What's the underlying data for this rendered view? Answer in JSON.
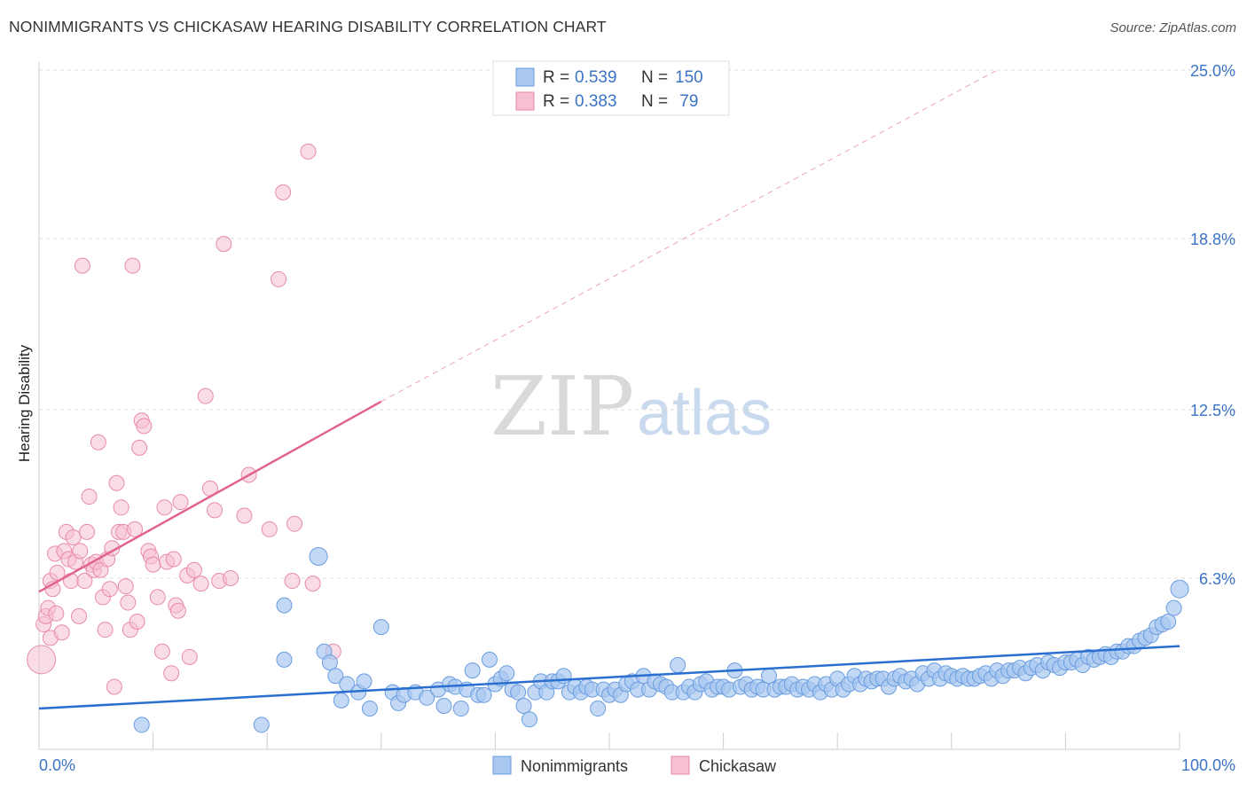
{
  "header": {
    "title": "NONIMMIGRANTS VS CHICKASAW HEARING DISABILITY CORRELATION CHART",
    "source": "Source: ZipAtlas.com"
  },
  "watermark": {
    "zip": "ZIP",
    "atlas": "atlas"
  },
  "colors": {
    "blue_fill": "#a8c8ef",
    "blue_stroke": "#6a9de0",
    "blue_line": "#2a6fd0",
    "pink_fill": "#f6bfd2",
    "pink_stroke": "#e88aab",
    "pink_line": "#e0648f",
    "grid": "#dddddd",
    "axis_label": "#3a73c4"
  },
  "legend": {
    "rows": [
      {
        "r_label": "R = ",
        "r_value": "0.539",
        "n_label": "N = ",
        "n_value": "150"
      },
      {
        "r_label": "R = ",
        "r_value": "0.383",
        "n_label": "N = ",
        "n_value": " 79"
      }
    ]
  },
  "chart_data": {
    "type": "scatter",
    "title": "NONIMMIGRANTS VS CHICKASAW HEARING DISABILITY CORRELATION CHART",
    "xlabel": "",
    "ylabel": "Hearing Disability",
    "xlim": [
      0,
      100
    ],
    "ylim": [
      0,
      25.0
    ],
    "x_tick_labels": [
      "0.0%",
      "100.0%"
    ],
    "y_ticks": [
      6.3,
      12.5,
      18.8,
      25.0
    ],
    "y_tick_labels": [
      "6.3%",
      "12.5%",
      "18.8%",
      "25.0%"
    ],
    "x_minor_ticks": [
      10,
      20,
      30,
      40,
      50,
      60,
      70,
      80,
      90,
      100
    ],
    "legend_position": "top-center",
    "series": [
      {
        "name": "Nonimmigrants",
        "r": 0.539,
        "n": 150,
        "trend": {
          "x0": 0,
          "y0": 1.5,
          "x1": 100,
          "y1": 3.8,
          "dashed_to": null
        },
        "points": [
          [
            9,
            0.9
          ],
          [
            19.5,
            0.9
          ],
          [
            21.5,
            5.3
          ],
          [
            21.5,
            3.3
          ],
          [
            24.5,
            7.1
          ],
          [
            25,
            3.6
          ],
          [
            25.5,
            3.2
          ],
          [
            26,
            2.7
          ],
          [
            26.5,
            1.8
          ],
          [
            27,
            2.4
          ],
          [
            28,
            2.1
          ],
          [
            28.5,
            2.5
          ],
          [
            29,
            1.5
          ],
          [
            30,
            4.5
          ],
          [
            31,
            2.1
          ],
          [
            31.5,
            1.7
          ],
          [
            32,
            2.0
          ],
          [
            33,
            2.1
          ],
          [
            34,
            1.9
          ],
          [
            35,
            2.2
          ],
          [
            35.5,
            1.6
          ],
          [
            36,
            2.4
          ],
          [
            36.5,
            2.3
          ],
          [
            37,
            1.5
          ],
          [
            37.5,
            2.2
          ],
          [
            38,
            2.9
          ],
          [
            38.5,
            2.0
          ],
          [
            39,
            2.0
          ],
          [
            39.5,
            3.3
          ],
          [
            40,
            2.4
          ],
          [
            40.5,
            2.6
          ],
          [
            41,
            2.8
          ],
          [
            41.5,
            2.2
          ],
          [
            42,
            2.1
          ],
          [
            42.5,
            1.6
          ],
          [
            43,
            1.1
          ],
          [
            43.5,
            2.1
          ],
          [
            44,
            2.5
          ],
          [
            44.5,
            2.1
          ],
          [
            45,
            2.5
          ],
          [
            45.5,
            2.5
          ],
          [
            46,
            2.7
          ],
          [
            46.5,
            2.1
          ],
          [
            47,
            2.3
          ],
          [
            47.5,
            2.1
          ],
          [
            48,
            2.3
          ],
          [
            48.5,
            2.2
          ],
          [
            49,
            1.5
          ],
          [
            49.5,
            2.2
          ],
          [
            50,
            2.0
          ],
          [
            50.5,
            2.2
          ],
          [
            51,
            2.0
          ],
          [
            51.5,
            2.4
          ],
          [
            52,
            2.5
          ],
          [
            52.5,
            2.2
          ],
          [
            53,
            2.7
          ],
          [
            53.5,
            2.2
          ],
          [
            54,
            2.5
          ],
          [
            54.5,
            2.4
          ],
          [
            55,
            2.3
          ],
          [
            55.5,
            2.1
          ],
          [
            56,
            3.1
          ],
          [
            56.5,
            2.1
          ],
          [
            57,
            2.3
          ],
          [
            57.5,
            2.1
          ],
          [
            58,
            2.4
          ],
          [
            58.5,
            2.5
          ],
          [
            59,
            2.2
          ],
          [
            59.5,
            2.3
          ],
          [
            60,
            2.3
          ],
          [
            60.5,
            2.2
          ],
          [
            61,
            2.9
          ],
          [
            61.5,
            2.3
          ],
          [
            62,
            2.4
          ],
          [
            62.5,
            2.2
          ],
          [
            63,
            2.3
          ],
          [
            63.5,
            2.2
          ],
          [
            64,
            2.7
          ],
          [
            64.5,
            2.2
          ],
          [
            65,
            2.3
          ],
          [
            65.5,
            2.3
          ],
          [
            66,
            2.4
          ],
          [
            66.5,
            2.2
          ],
          [
            67,
            2.3
          ],
          [
            67.5,
            2.2
          ],
          [
            68,
            2.4
          ],
          [
            68.5,
            2.1
          ],
          [
            69,
            2.4
          ],
          [
            69.5,
            2.2
          ],
          [
            70,
            2.6
          ],
          [
            70.5,
            2.2
          ],
          [
            71,
            2.4
          ],
          [
            71.5,
            2.7
          ],
          [
            72,
            2.4
          ],
          [
            72.5,
            2.6
          ],
          [
            73,
            2.5
          ],
          [
            73.5,
            2.6
          ],
          [
            74,
            2.6
          ],
          [
            74.5,
            2.3
          ],
          [
            75,
            2.6
          ],
          [
            75.5,
            2.7
          ],
          [
            76,
            2.5
          ],
          [
            76.5,
            2.6
          ],
          [
            77,
            2.4
          ],
          [
            77.5,
            2.8
          ],
          [
            78,
            2.6
          ],
          [
            78.5,
            2.9
          ],
          [
            79,
            2.6
          ],
          [
            79.5,
            2.8
          ],
          [
            80,
            2.7
          ],
          [
            80.5,
            2.6
          ],
          [
            81,
            2.7
          ],
          [
            81.5,
            2.6
          ],
          [
            82,
            2.6
          ],
          [
            82.5,
            2.7
          ],
          [
            83,
            2.8
          ],
          [
            83.5,
            2.6
          ],
          [
            84,
            2.9
          ],
          [
            84.5,
            2.7
          ],
          [
            85,
            2.9
          ],
          [
            85.5,
            2.9
          ],
          [
            86,
            3.0
          ],
          [
            86.5,
            2.8
          ],
          [
            87,
            3.0
          ],
          [
            87.5,
            3.1
          ],
          [
            88,
            2.9
          ],
          [
            88.5,
            3.2
          ],
          [
            89,
            3.1
          ],
          [
            89.5,
            3.0
          ],
          [
            90,
            3.2
          ],
          [
            90.5,
            3.2
          ],
          [
            91,
            3.3
          ],
          [
            91.5,
            3.1
          ],
          [
            92,
            3.4
          ],
          [
            92.5,
            3.3
          ],
          [
            93,
            3.4
          ],
          [
            93.5,
            3.5
          ],
          [
            94,
            3.4
          ],
          [
            94.5,
            3.6
          ],
          [
            95,
            3.6
          ],
          [
            95.5,
            3.8
          ],
          [
            96,
            3.8
          ],
          [
            96.5,
            4.0
          ],
          [
            97,
            4.1
          ],
          [
            97.5,
            4.2
          ],
          [
            98,
            4.5
          ],
          [
            98.5,
            4.6
          ],
          [
            99,
            4.7
          ],
          [
            99.5,
            5.2
          ],
          [
            100,
            5.9
          ]
        ]
      },
      {
        "name": "Chickasaw",
        "r": 0.383,
        "n": 79,
        "trend": {
          "x0": 0,
          "y0": 5.8,
          "x1": 30,
          "y1": 12.8,
          "dashed_to": [
            84,
            25.0
          ]
        },
        "points": [
          [
            0.2,
            3.3
          ],
          [
            0.4,
            4.6
          ],
          [
            0.6,
            4.9
          ],
          [
            0.8,
            5.2
          ],
          [
            1,
            4.1
          ],
          [
            1,
            6.2
          ],
          [
            1.2,
            5.9
          ],
          [
            1.4,
            7.2
          ],
          [
            1.5,
            5.0
          ],
          [
            1.6,
            6.5
          ],
          [
            2,
            4.3
          ],
          [
            2.2,
            7.3
          ],
          [
            2.4,
            8.0
          ],
          [
            2.6,
            7.0
          ],
          [
            2.8,
            6.2
          ],
          [
            3,
            7.8
          ],
          [
            3.2,
            6.9
          ],
          [
            3.5,
            4.9
          ],
          [
            3.6,
            7.3
          ],
          [
            3.8,
            17.8
          ],
          [
            4,
            6.2
          ],
          [
            4.2,
            8.0
          ],
          [
            4.4,
            9.3
          ],
          [
            4.6,
            6.8
          ],
          [
            4.8,
            6.6
          ],
          [
            5,
            6.9
          ],
          [
            5.2,
            11.3
          ],
          [
            5.4,
            6.6
          ],
          [
            5.6,
            5.6
          ],
          [
            5.8,
            4.4
          ],
          [
            6,
            7.0
          ],
          [
            6.2,
            5.9
          ],
          [
            6.4,
            7.4
          ],
          [
            6.6,
            2.3
          ],
          [
            6.8,
            9.8
          ],
          [
            7,
            8.0
          ],
          [
            7.2,
            8.9
          ],
          [
            7.4,
            8.0
          ],
          [
            7.6,
            6.0
          ],
          [
            7.8,
            5.4
          ],
          [
            8,
            4.4
          ],
          [
            8.2,
            17.8
          ],
          [
            8.4,
            8.1
          ],
          [
            8.6,
            4.7
          ],
          [
            8.8,
            11.1
          ],
          [
            9,
            12.1
          ],
          [
            9.2,
            11.9
          ],
          [
            9.6,
            7.3
          ],
          [
            9.8,
            7.1
          ],
          [
            10,
            6.8
          ],
          [
            10.4,
            5.6
          ],
          [
            10.8,
            3.6
          ],
          [
            11,
            8.9
          ],
          [
            11.2,
            6.9
          ],
          [
            11.6,
            2.8
          ],
          [
            11.8,
            7.0
          ],
          [
            12,
            5.3
          ],
          [
            12.2,
            5.1
          ],
          [
            12.4,
            9.1
          ],
          [
            13,
            6.4
          ],
          [
            13.2,
            3.4
          ],
          [
            13.6,
            6.6
          ],
          [
            14.2,
            6.1
          ],
          [
            14.6,
            13.0
          ],
          [
            15,
            9.6
          ],
          [
            15.4,
            8.8
          ],
          [
            15.8,
            6.2
          ],
          [
            16.2,
            18.6
          ],
          [
            16.8,
            6.3
          ],
          [
            18,
            8.6
          ],
          [
            18.4,
            10.1
          ],
          [
            20.2,
            8.1
          ],
          [
            21,
            17.3
          ],
          [
            21.4,
            20.5
          ],
          [
            22.2,
            6.2
          ],
          [
            22.4,
            8.3
          ],
          [
            23.6,
            22.0
          ],
          [
            24,
            6.1
          ],
          [
            25.8,
            3.6
          ]
        ]
      }
    ]
  },
  "bottom_legend": [
    {
      "label": "Nonimmigrants"
    },
    {
      "label": "Chickasaw"
    }
  ]
}
